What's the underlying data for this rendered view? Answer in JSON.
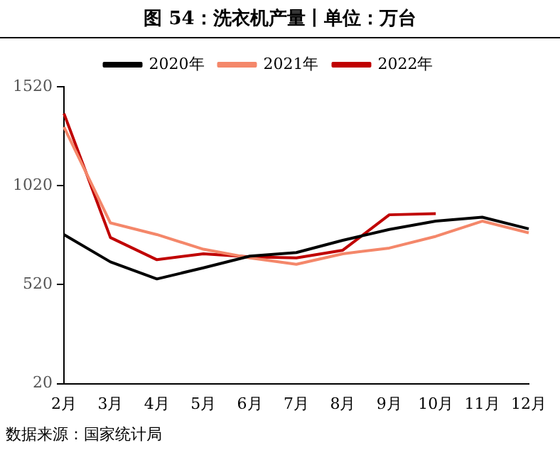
{
  "chart_data": {
    "type": "line",
    "title": "图 54：洗衣机产量丨单位：万台",
    "categories": [
      "2月",
      "3月",
      "4月",
      "5月",
      "6月",
      "7月",
      "8月",
      "9月",
      "10月",
      "11月",
      "12月"
    ],
    "series": [
      {
        "name": "2020年",
        "color": "#000000",
        "values": [
          773,
          635,
          549,
          605,
          664,
          682,
          744,
          799,
          841,
          861,
          802
        ]
      },
      {
        "name": "2021年",
        "color": "#f4876a",
        "values": [
          1317,
          832,
          773,
          699,
          655,
          623,
          676,
          705,
          764,
          841,
          782
        ]
      },
      {
        "name": "2022年",
        "color": "#c00000",
        "values": [
          1385,
          758,
          646,
          676,
          661,
          655,
          694,
          873,
          879,
          null,
          null
        ]
      }
    ],
    "ylim": [
      20,
      1520
    ],
    "yticks": [
      20,
      520,
      1020,
      1520
    ],
    "grid": false,
    "legend": "top",
    "marker": "none",
    "line_style": "solid",
    "annotations": [
      "数据来源：国家统计局"
    ]
  }
}
